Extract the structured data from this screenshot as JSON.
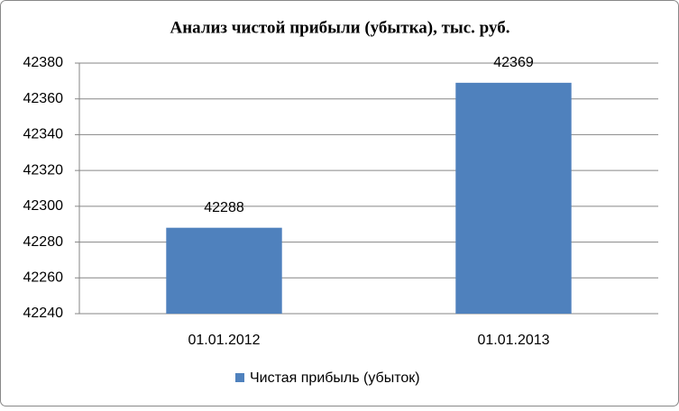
{
  "chart_data": {
    "type": "bar",
    "title": "Анализ чистой прибыли (убытка), тыс. руб.",
    "categories": [
      "01.01.2012",
      "01.01.2013"
    ],
    "series": [
      {
        "name": "Чистая прибыль (убыток)",
        "color": "#4f81bd",
        "values": [
          42288,
          42369
        ]
      }
    ],
    "ylim": [
      42240,
      42380
    ],
    "yticks": [
      42240,
      42260,
      42280,
      42300,
      42320,
      42340,
      42360,
      42380
    ],
    "grid": true,
    "legend": "bottom",
    "data_labels": true
  }
}
